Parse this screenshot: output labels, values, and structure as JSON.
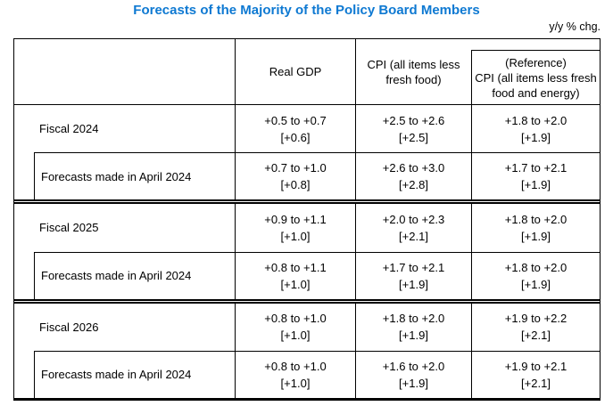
{
  "title": "Forecasts of the Majority of the Policy Board Members",
  "unit_label": "y/y % chg.",
  "colors": {
    "title": "#0e79d2",
    "border": "#000000",
    "background": "#ffffff",
    "text": "#000000"
  },
  "table": {
    "header": {
      "real_gdp": "Real GDP",
      "cpi": "CPI (all items less fresh food)",
      "ref_line1": "(Reference)",
      "ref_line2": "CPI (all items less fresh food and energy)"
    },
    "groups": [
      {
        "label": "Fiscal 2024",
        "cells": [
          {
            "range": "+0.5 to +0.7",
            "median": "[+0.6]"
          },
          {
            "range": "+2.5 to +2.6",
            "median": "[+2.5]"
          },
          {
            "range": "+1.8 to +2.0",
            "median": "[+1.9]"
          }
        ],
        "april": {
          "label": "Forecasts made in April 2024",
          "cells": [
            {
              "range": "+0.7 to +1.0",
              "median": "[+0.8]"
            },
            {
              "range": "+2.6 to +3.0",
              "median": "[+2.8]"
            },
            {
              "range": "+1.7 to +2.1",
              "median": "[+1.9]"
            }
          ]
        }
      },
      {
        "label": "Fiscal 2025",
        "cells": [
          {
            "range": "+0.9 to +1.1",
            "median": "[+1.0]"
          },
          {
            "range": "+2.0 to +2.3",
            "median": "[+2.1]"
          },
          {
            "range": "+1.8 to +2.0",
            "median": "[+1.9]"
          }
        ],
        "april": {
          "label": "Forecasts made in April 2024",
          "cells": [
            {
              "range": "+0.8 to +1.1",
              "median": "[+1.0]"
            },
            {
              "range": "+1.7 to +2.1",
              "median": "[+1.9]"
            },
            {
              "range": "+1.8 to +2.0",
              "median": "[+1.9]"
            }
          ]
        }
      },
      {
        "label": "Fiscal 2026",
        "cells": [
          {
            "range": "+0.8 to +1.0",
            "median": "[+1.0]"
          },
          {
            "range": "+1.8 to +2.0",
            "median": "[+1.9]"
          },
          {
            "range": "+1.9 to +2.2",
            "median": "[+2.1]"
          }
        ],
        "april": {
          "label": "Forecasts made in April 2024",
          "cells": [
            {
              "range": "+0.8 to +1.0",
              "median": "[+1.0]"
            },
            {
              "range": "+1.6 to +2.0",
              "median": "[+1.9]"
            },
            {
              "range": "+1.9 to +2.1",
              "median": "[+2.1]"
            }
          ]
        }
      }
    ]
  }
}
